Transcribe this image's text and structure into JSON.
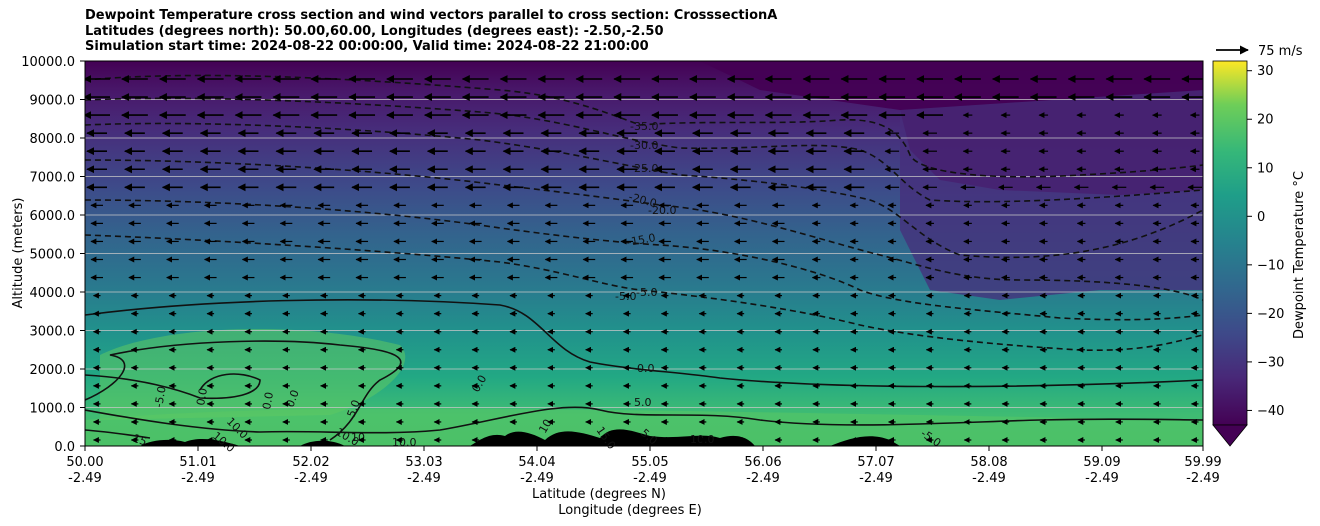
{
  "chart_data": {
    "type": "heatmap",
    "title_lines": [
      "Dewpoint Temperature cross section and wind vectors parallel to cross section: CrosssectionA",
      "Latitudes (degrees north): 50.00,60.00, Longitudes (degrees east): -2.50,-2.50",
      "Simulation start time: 2024-08-22 00:00:00, Valid time: 2024-08-22 21:00:00"
    ],
    "xlabel": "Latitude (degrees N)",
    "xlabel2": "Longitude (degrees E)",
    "ylabel": "Altitude (meters)",
    "x_ticks": [
      "50.00",
      "51.01",
      "52.02",
      "53.03",
      "54.04",
      "55.05",
      "56.06",
      "57.07",
      "58.08",
      "59.09",
      "59.99"
    ],
    "x_ticks2": [
      "-2.49",
      "-2.49",
      "-2.49",
      "-2.49",
      "-2.49",
      "-2.49",
      "-2.49",
      "-2.49",
      "-2.49",
      "-2.49",
      "-2.49"
    ],
    "y_ticks": [
      "0.0",
      "1000.0",
      "2000.0",
      "3000.0",
      "4000.0",
      "5000.0",
      "6000.0",
      "7000.0",
      "8000.0",
      "9000.0",
      "10000.0"
    ],
    "ylim": [
      0,
      10000
    ],
    "xlim": [
      50.0,
      59.99
    ],
    "grid": "horizontal",
    "colorbar": {
      "label": "Dewpoint Temperature °C",
      "ticks": [
        "30",
        "20",
        "10",
        "0",
        "−10",
        "−20",
        "−30",
        "−40"
      ],
      "tick_values": [
        30,
        20,
        10,
        0,
        -10,
        -20,
        -30,
        -40
      ],
      "range": [
        -43,
        32
      ],
      "colormap": "viridis",
      "extend": "min"
    },
    "quiver_key": {
      "label": "75 m/s",
      "speed": 75
    },
    "contour_labels": [
      "-35.0",
      "-30.0",
      "-25.0",
      "-20.0",
      "-20.0",
      "-15.0",
      "-5.0",
      "-5.0",
      "0.0",
      "5.0",
      "0.0",
      "-5.0",
      "0.0",
      "0.0",
      "0.0",
      "5.0",
      "10.0",
      "10.0",
      "10",
      "10.0",
      "15",
      "10",
      "10.0",
      "15.0",
      "10.0",
      "5.0",
      "-5.0"
    ],
    "sample_levels": [
      {
        "altitude": 9500,
        "dewpoint": -42
      },
      {
        "altitude": 8000,
        "dewpoint": -35
      },
      {
        "altitude": 6000,
        "dewpoint": -22
      },
      {
        "altitude": 4000,
        "dewpoint": -8
      },
      {
        "altitude": 2000,
        "dewpoint": 3
      },
      {
        "altitude": 500,
        "dewpoint": 10
      }
    ]
  }
}
